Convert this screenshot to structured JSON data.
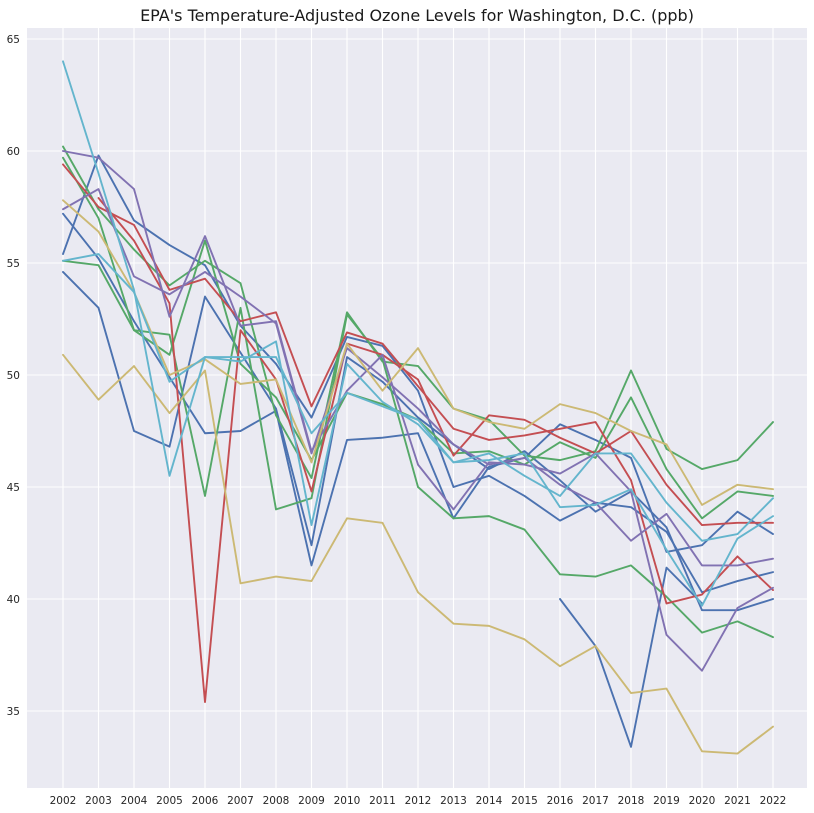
{
  "chart_data": {
    "type": "line",
    "title": "EPA's Temperature-Adjusted Ozone Levels for Washington, D.C. (ppb)",
    "xlabel": "",
    "ylabel": "",
    "x": [
      2002,
      2003,
      2004,
      2005,
      2006,
      2007,
      2008,
      2009,
      2010,
      2011,
      2012,
      2013,
      2014,
      2015,
      2016,
      2017,
      2018,
      2019,
      2020,
      2021,
      2022
    ],
    "x_tick_labels": [
      "2002",
      "2003",
      "2004",
      "2005",
      "2006",
      "2007",
      "2008",
      "2009",
      "2010",
      "2011",
      "2012",
      "2013",
      "2014",
      "2015",
      "2016",
      "2017",
      "2018",
      "2019",
      "2020",
      "2021",
      "2022"
    ],
    "y_ticks": [
      35,
      40,
      45,
      50,
      55,
      60,
      65
    ],
    "ylim": [
      31.7,
      65.5
    ],
    "grid": true,
    "background": "#eaeaf2",
    "series": [
      {
        "color": "#4c72b0",
        "values": [
          57.2,
          55.2,
          52.4,
          49.9,
          47.4,
          47.5,
          48.4,
          41.5,
          47.1,
          47.2,
          47.4,
          43.6,
          45.9,
          46.3,
          47.8,
          47.1,
          46.3,
          42.1,
          42.4,
          43.9,
          42.9
        ]
      },
      {
        "color": "#4c72b0",
        "values": [
          55.4,
          59.8,
          56.9,
          55.8,
          54.9,
          52.2,
          50.5,
          48.1,
          51.7,
          51.3,
          49.3,
          45.0,
          45.5,
          44.6,
          43.5,
          44.3,
          44.1,
          43.0,
          40.3,
          40.8,
          41.2
        ]
      },
      {
        "color": "#4c72b0",
        "values": [
          54.6,
          53.0,
          47.5,
          46.8,
          53.5,
          51.0,
          48.5,
          42.4,
          50.8,
          49.7,
          48.1,
          46.9,
          45.8,
          46.6,
          45.3,
          43.9,
          44.8,
          43.2,
          39.5,
          39.5,
          40.0
        ]
      },
      {
        "color": "#4c72b0",
        "values": [
          null,
          null,
          null,
          null,
          null,
          null,
          null,
          null,
          null,
          null,
          null,
          null,
          null,
          null,
          40.0,
          37.9,
          33.4,
          41.4,
          39.8,
          null,
          null
        ]
      },
      {
        "color": "#55a868",
        "values": [
          60.2,
          57.4,
          55.6,
          54.0,
          55.1,
          54.1,
          48.2,
          45.4,
          52.8,
          50.6,
          50.4,
          48.5,
          48.0,
          46.4,
          46.2,
          46.6,
          50.2,
          46.7,
          45.8,
          46.2,
          47.9
        ]
      },
      {
        "color": "#55a868",
        "values": [
          55.1,
          54.9,
          52.0,
          51.8,
          44.6,
          53.0,
          44.0,
          44.5,
          52.7,
          50.7,
          45.0,
          43.6,
          43.7,
          43.1,
          41.1,
          41.0,
          41.5,
          40.1,
          38.5,
          39.0,
          38.3
        ]
      },
      {
        "color": "#55a868",
        "values": [
          59.7,
          57.0,
          52.0,
          50.9,
          56.0,
          50.5,
          49.0,
          46.2,
          49.2,
          48.7,
          48.0,
          46.5,
          46.6,
          46.0,
          47.0,
          46.3,
          49.0,
          45.8,
          43.6,
          44.8,
          44.6
        ]
      },
      {
        "color": "#c44e52",
        "values": [
          59.4,
          57.5,
          56.7,
          53.8,
          54.3,
          52.4,
          52.8,
          48.6,
          51.9,
          51.4,
          49.5,
          47.6,
          47.1,
          47.3,
          47.6,
          47.9,
          45.3,
          39.8,
          40.2,
          41.9,
          40.4
        ]
      },
      {
        "color": "#c44e52",
        "values": [
          null,
          57.9,
          56.0,
          53.2,
          35.4,
          52.0,
          49.8,
          44.8,
          51.4,
          50.9,
          49.8,
          46.4,
          48.2,
          48.0,
          47.2,
          46.5,
          47.5,
          45.1,
          43.3,
          43.4,
          43.4
        ]
      },
      {
        "color": "#8172b2",
        "values": [
          60.0,
          59.7,
          58.3,
          52.6,
          56.2,
          52.2,
          52.4,
          46.6,
          49.3,
          50.9,
          46.0,
          44.0,
          46.1,
          46.0,
          45.6,
          46.5,
          44.8,
          38.4,
          36.8,
          39.6,
          40.5
        ]
      },
      {
        "color": "#8172b2",
        "values": [
          57.4,
          58.3,
          54.4,
          53.6,
          54.6,
          53.5,
          52.3,
          46.5,
          51.2,
          49.9,
          48.5,
          46.9,
          46.0,
          46.3,
          45.1,
          44.3,
          42.6,
          43.8,
          41.5,
          41.5,
          41.8
        ]
      },
      {
        "color": "#ccb974",
        "values": [
          50.9,
          48.9,
          50.4,
          48.3,
          50.2,
          40.7,
          41.0,
          40.8,
          43.6,
          43.4,
          40.3,
          38.9,
          38.8,
          38.2,
          37.0,
          37.9,
          35.8,
          36.0,
          33.2,
          33.1,
          34.3
        ]
      },
      {
        "color": "#ccb974",
        "values": [
          57.8,
          56.4,
          53.7,
          50.0,
          50.7,
          49.6,
          49.8,
          46.1,
          51.4,
          49.3,
          51.2,
          48.5,
          47.9,
          47.6,
          48.7,
          48.3,
          47.5,
          46.9,
          44.2,
          45.1,
          44.9
        ]
      },
      {
        "color": "#64b5cd",
        "values": [
          64.0,
          59.0,
          53.8,
          45.5,
          50.8,
          50.6,
          51.5,
          43.3,
          50.5,
          48.8,
          47.8,
          46.1,
          46.5,
          45.5,
          44.6,
          46.5,
          46.5,
          44.3,
          42.6,
          42.9,
          44.5
        ]
      },
      {
        "color": "#64b5cd",
        "values": [
          55.1,
          55.4,
          53.7,
          49.7,
          50.8,
          50.8,
          50.8,
          47.4,
          49.2,
          48.6,
          48.0,
          46.1,
          46.2,
          46.5,
          44.1,
          44.2,
          44.9,
          42.2,
          39.7,
          42.7,
          43.7
        ]
      }
    ]
  }
}
